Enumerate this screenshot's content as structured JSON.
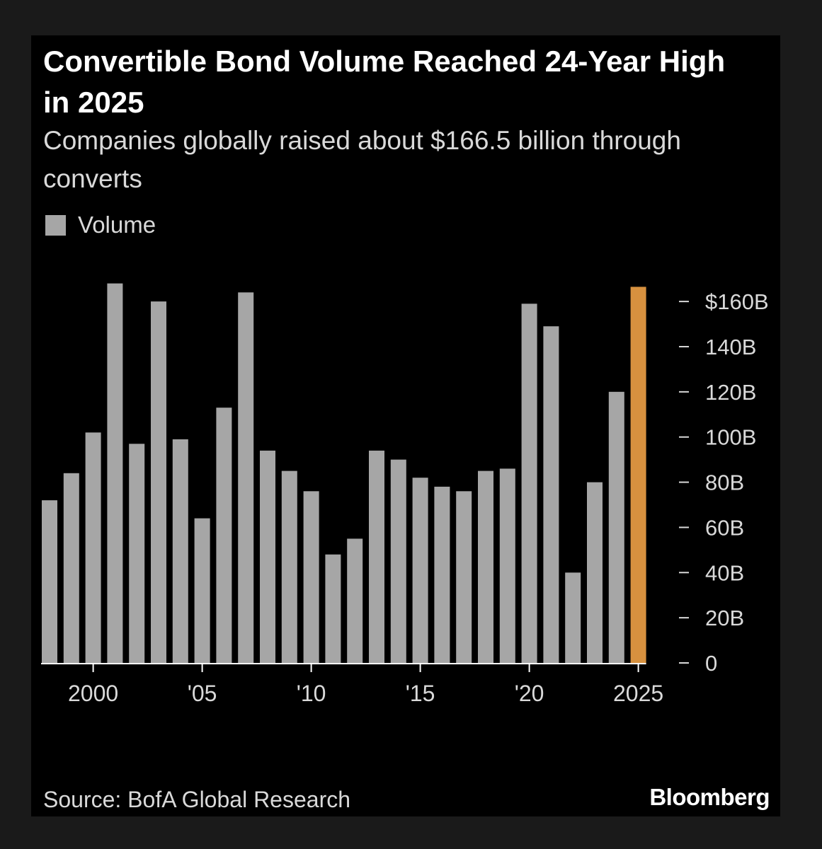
{
  "title": "Convertible Bond Volume Reached 24-Year High in 2025",
  "subtitle": "Companies globally raised about $166.5 billion through converts",
  "legend": {
    "label": "Volume"
  },
  "source": "Source: BofA Global Research",
  "brand": "Bloomberg",
  "colors": {
    "bar": "#a6a6a6",
    "highlight": "#d7913f",
    "background": "#000000",
    "text": "#d9d9d9"
  },
  "chart_data": {
    "type": "bar",
    "title": "Convertible Bond Volume Reached 24-Year High in 2025",
    "subtitle": "Companies globally raised about $166.5 billion through converts",
    "xlabel": "",
    "ylabel": "",
    "y_axis_position": "right",
    "ylim": [
      0,
      166.5
    ],
    "y_ticks": [
      0,
      20,
      40,
      60,
      80,
      100,
      120,
      140,
      160
    ],
    "y_tick_labels": [
      "0",
      "20B",
      "40B",
      "60B",
      "80B",
      "100B",
      "120B",
      "140B",
      "$160B"
    ],
    "x_ticks": [
      2000,
      2005,
      2010,
      2015,
      2020,
      2025
    ],
    "x_tick_labels": [
      "2000",
      "'05",
      "'10",
      "'15",
      "'20",
      "2025"
    ],
    "highlight_category": 2025,
    "legend_position": "top-left",
    "grid": false,
    "categories": [
      1998,
      1999,
      2000,
      2001,
      2002,
      2003,
      2004,
      2005,
      2006,
      2007,
      2008,
      2009,
      2010,
      2011,
      2012,
      2013,
      2014,
      2015,
      2016,
      2017,
      2018,
      2019,
      2020,
      2021,
      2022,
      2023,
      2024,
      2025
    ],
    "series": [
      {
        "name": "Volume",
        "values": [
          72,
          84,
          102,
          168,
          97,
          160,
          99,
          64,
          113,
          164,
          94,
          85,
          76,
          48,
          55,
          94,
          90,
          82,
          78,
          76,
          85,
          86,
          159,
          149,
          40,
          80,
          120,
          166.5
        ]
      }
    ]
  }
}
